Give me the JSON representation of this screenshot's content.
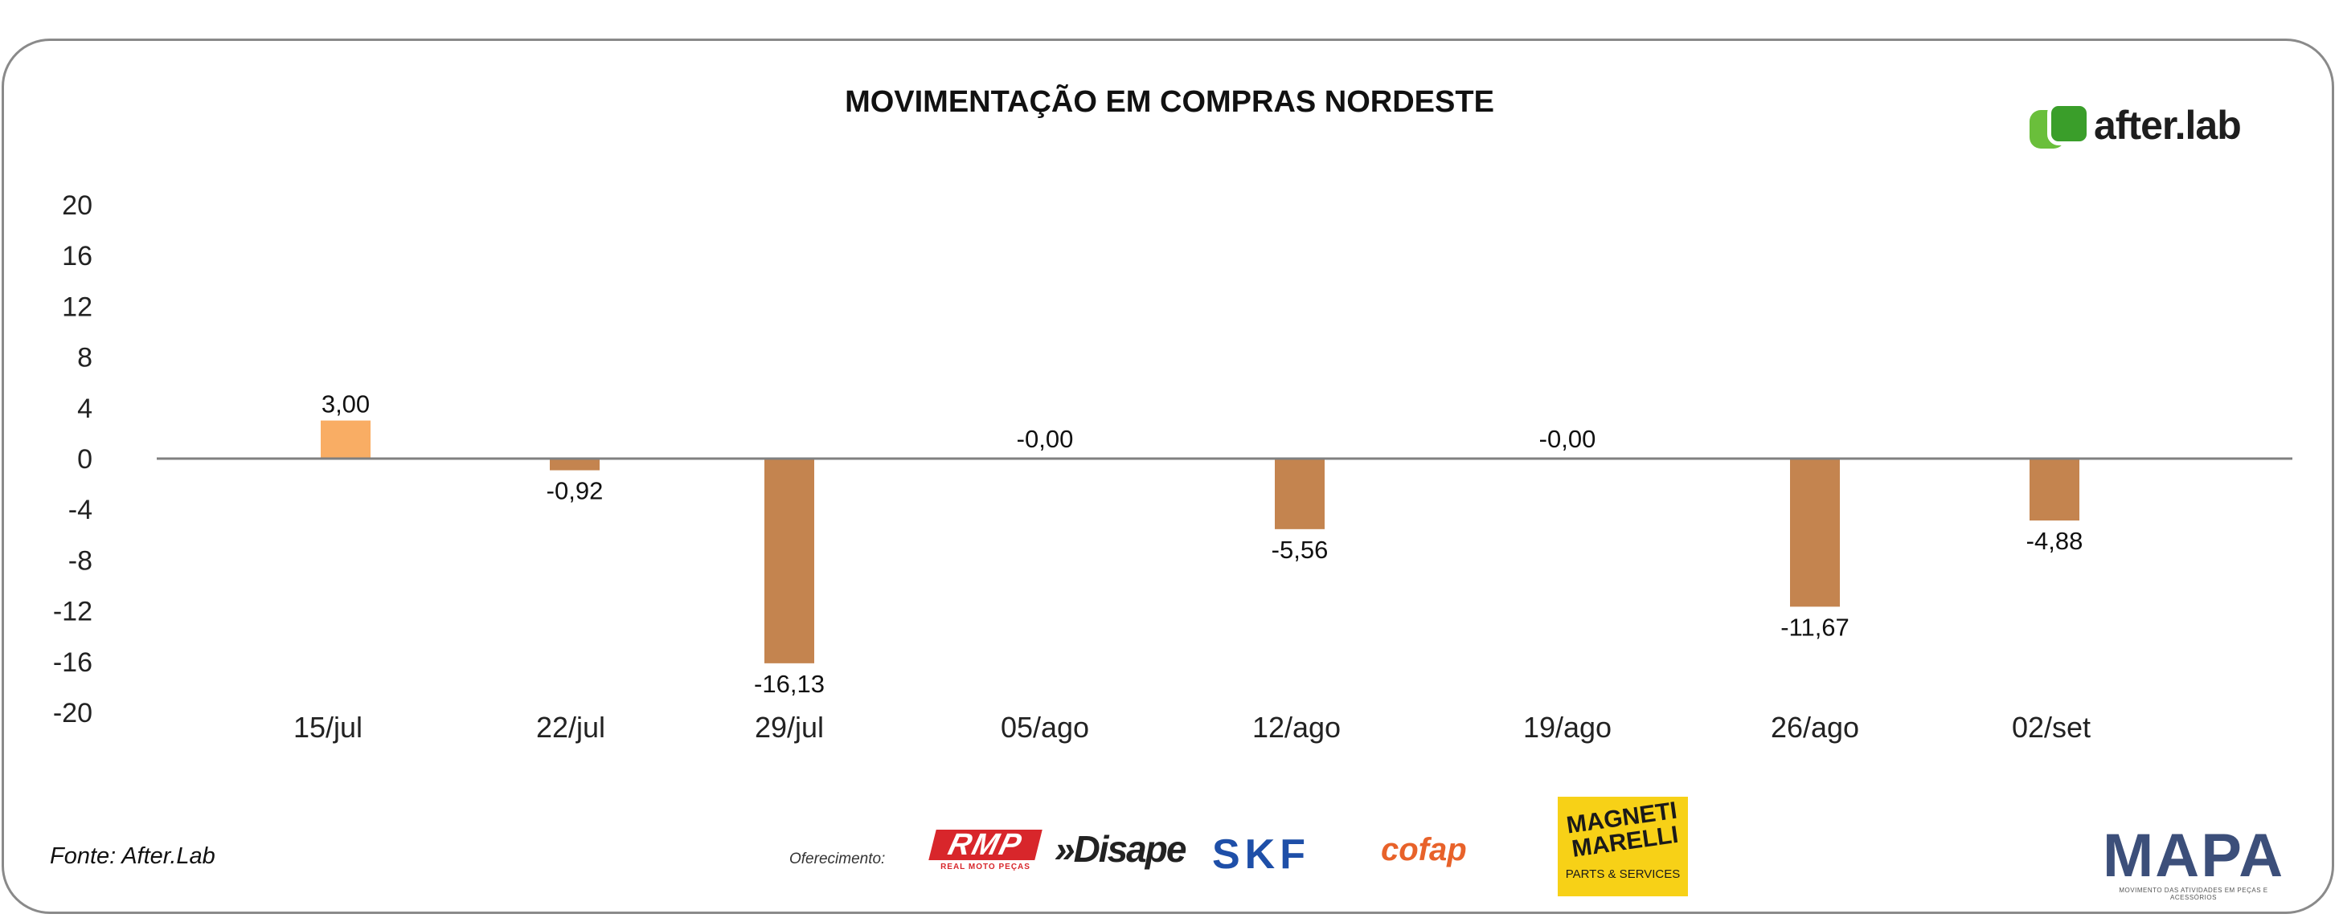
{
  "title": "MOVIMENTAÇÃO EM COMPRAS NORDESTE",
  "brand": {
    "name": "after.lab",
    "icon": "afterlab-logo-icon",
    "color": "#4caf32"
  },
  "source": "Fonte: After.Lab",
  "sponsors": {
    "label": "Oferecimento:",
    "rmp": "RMP",
    "rmp_sub": "REAL MOTO PEÇAS",
    "disape": "»Disape",
    "skf": "SKF",
    "cofap": "cofap",
    "magneti": "MAGNETI MARELLI",
    "magneti_sub": "PARTS & SERVICES"
  },
  "mapa": {
    "name": "MAPA",
    "tagline": "MOVIMENTO DAS ATIVIDADES EM PEÇAS E ACESSÓRIOS"
  },
  "colors": {
    "positive": "#f9ad64",
    "negative": "#c4844f",
    "axis": "#808080"
  },
  "chart_data": {
    "type": "bar",
    "categories": [
      "15/jul",
      "22/jul",
      "29/jul",
      "05/ago",
      "12/ago",
      "19/ago",
      "26/ago",
      "02/set"
    ],
    "values": [
      3.0,
      -0.92,
      -16.13,
      -0.0,
      -5.56,
      -0.0,
      -11.67,
      -4.88
    ],
    "labels": [
      "3,00",
      "-0,92",
      "-16,13",
      "-0,00",
      "-5,56",
      "-0,00",
      "-11,67",
      "-4,88"
    ],
    "yticks": [
      "20",
      "16",
      "12",
      "8",
      "4",
      "0",
      "-4",
      "-8",
      "-12",
      "-16",
      "-20"
    ],
    "ylim": [
      -20,
      20
    ],
    "legend": "none",
    "grid": false
  }
}
